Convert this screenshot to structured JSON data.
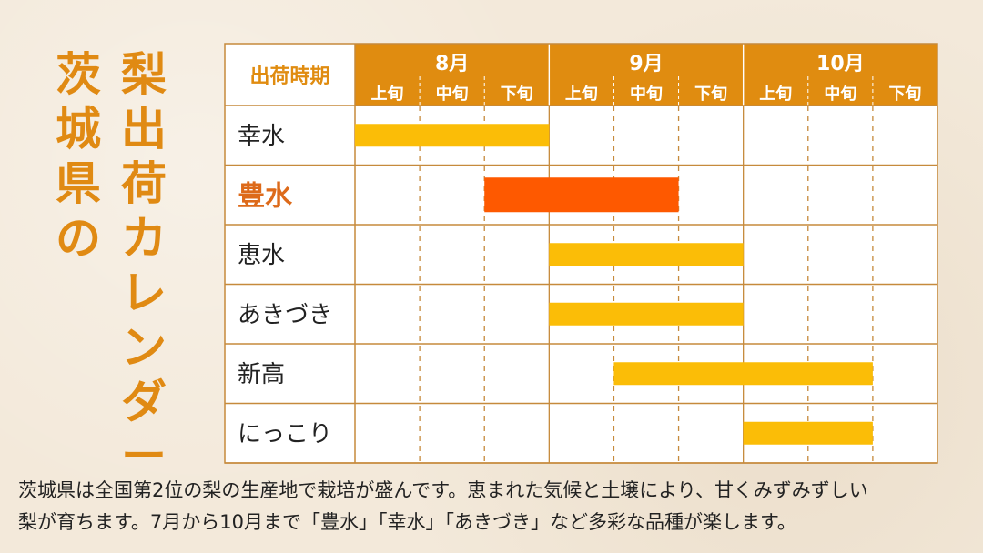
{
  "title": {
    "line1": "茨城県の",
    "line2": "梨出荷カレンダー"
  },
  "colors": {
    "header": "#e08c10",
    "accent_text": "#dd6a1a",
    "bar": "#fbbd07",
    "bar_highlight": "#fe5900",
    "grid": "#c68a3c"
  },
  "chart_data": {
    "type": "gantt",
    "corner_label": "出荷時期",
    "months": [
      {
        "label": "8月",
        "periods": [
          "上旬",
          "中旬",
          "下旬"
        ]
      },
      {
        "label": "9月",
        "periods": [
          "上旬",
          "中旬",
          "下旬"
        ]
      },
      {
        "label": "10月",
        "periods": [
          "上旬",
          "中旬",
          "下旬"
        ]
      }
    ],
    "varieties": [
      {
        "name": "幸水",
        "start": "8月上旬",
        "end": "8月下旬",
        "highlight": false
      },
      {
        "name": "豊水",
        "start": "8月下旬",
        "end": "9月中旬",
        "highlight": true
      },
      {
        "name": "恵水",
        "start": "9月上旬",
        "end": "9月下旬",
        "highlight": false
      },
      {
        "name": "あきづき",
        "start": "9月上旬",
        "end": "9月下旬",
        "highlight": false
      },
      {
        "name": "新高",
        "start": "9月中旬",
        "end": "10月中旬",
        "highlight": false
      },
      {
        "name": "にっこり",
        "start": "10月上旬",
        "end": "10月中旬",
        "highlight": false
      }
    ]
  },
  "footer": {
    "line1": "茨城県は全国第2位の梨の生産地で栽培が盛んです。恵まれた気候と土壌により、甘くみずみずしい",
    "line2": "梨が育ちます。7月から10月まで「豊水」「幸水」「あきづき」など多彩な品種が楽します。"
  }
}
